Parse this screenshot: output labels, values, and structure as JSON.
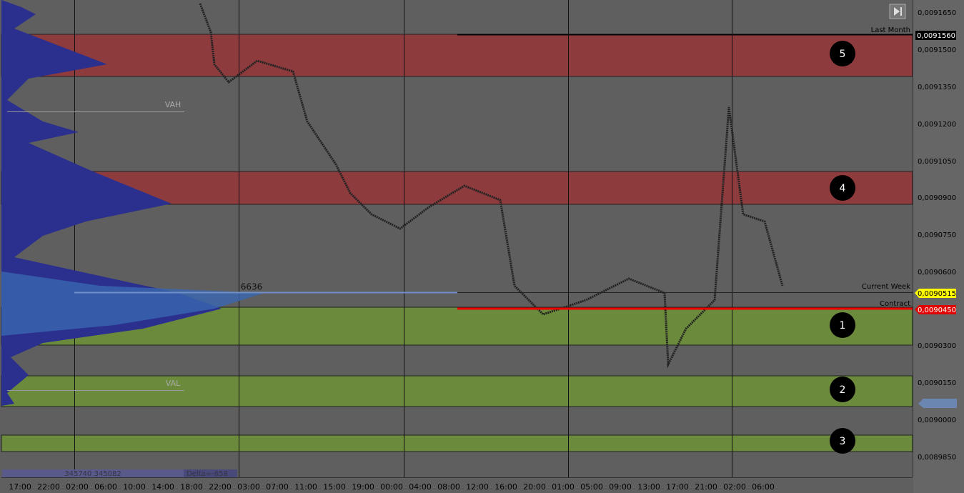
{
  "price_axis": {
    "labels": [
      "0,0091650",
      "0,0091500",
      "0,0091350",
      "0,0091200",
      "0,0091050",
      "0,0090900",
      "0,0090750",
      "0,0090600",
      "0,0090300",
      "0,0090150",
      "0,0090000",
      "0,0089850"
    ]
  },
  "time_axis": {
    "labels": [
      "17:00",
      "22:00",
      "02:00",
      "06:00",
      "10:00",
      "14:00",
      "18:00",
      "22:00",
      "03:00",
      "07:00",
      "11:00",
      "15:00",
      "19:00",
      "00:00",
      "04:00",
      "08:00",
      "12:00",
      "16:00",
      "20:00",
      "01:00",
      "05:00",
      "09:00",
      "13:00",
      "17:00",
      "21:00",
      "02:00",
      "06:00"
    ]
  },
  "zones": [
    {
      "label": "5"
    },
    {
      "label": "4"
    },
    {
      "label": "1"
    },
    {
      "label": "2"
    },
    {
      "label": "3"
    }
  ],
  "levels": {
    "last_month": {
      "label": "Last Month",
      "price": "0,0091560"
    },
    "current_week": {
      "label": "Current Week",
      "price": "0,0090515"
    },
    "contract": {
      "label": "Contract",
      "price": "0,0090450"
    }
  },
  "profile": {
    "vah": "VAH",
    "val": "VAL",
    "poc_volume": "6636"
  },
  "footer": {
    "volumes": "345740 345082",
    "delta": "Delta=-658"
  }
}
